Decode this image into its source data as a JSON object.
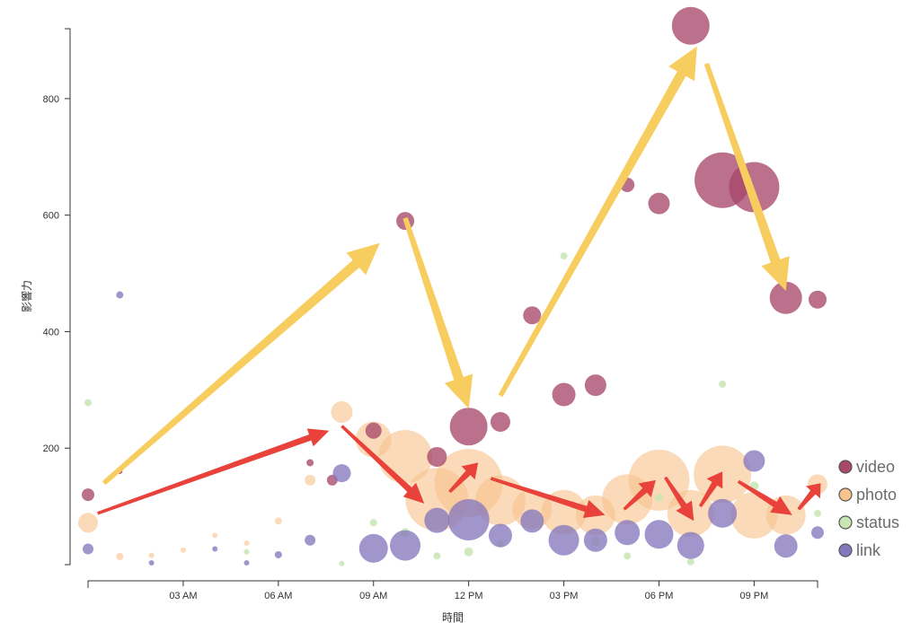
{
  "chart_data": {
    "type": "scatter",
    "xlabel": "時間",
    "ylabel": "影響力",
    "x_ticks": [
      "03 AM",
      "06 AM",
      "09 AM",
      "12 PM",
      "03 PM",
      "06 PM",
      "09 PM"
    ],
    "x_tick_hours": [
      3,
      6,
      9,
      12,
      15,
      18,
      21
    ],
    "x_range_hours": [
      0,
      23
    ],
    "y_ticks": [
      200,
      400,
      600,
      800
    ],
    "ylim": [
      0,
      920
    ],
    "grid": false,
    "legend_position": "bottom-right",
    "series": [
      {
        "name": "video",
        "color": "#a8486a",
        "points": [
          [
            0,
            120,
            7
          ],
          [
            1,
            160,
            3
          ],
          [
            7,
            175,
            4
          ],
          [
            7.7,
            145,
            6
          ],
          [
            9,
            230,
            9
          ],
          [
            10,
            590,
            10
          ],
          [
            11,
            185,
            11
          ],
          [
            12,
            237,
            21
          ],
          [
            13,
            245,
            11
          ],
          [
            14,
            428,
            10
          ],
          [
            15,
            292,
            13
          ],
          [
            16,
            308,
            12
          ],
          [
            17,
            652,
            8
          ],
          [
            18,
            620,
            12
          ],
          [
            19,
            925,
            21
          ],
          [
            20,
            660,
            31
          ],
          [
            21,
            648,
            28
          ],
          [
            22,
            458,
            18
          ],
          [
            23,
            455,
            10
          ]
        ]
      },
      {
        "name": "photo",
        "color": "#f7c48e",
        "points": [
          [
            0,
            72,
            11
          ],
          [
            1,
            14,
            4
          ],
          [
            2,
            16,
            3
          ],
          [
            3,
            25,
            3
          ],
          [
            4,
            50,
            3
          ],
          [
            5,
            37,
            3
          ],
          [
            6,
            75,
            4
          ],
          [
            7,
            145,
            6
          ],
          [
            8,
            262,
            12
          ],
          [
            9,
            215,
            20
          ],
          [
            10,
            185,
            30
          ],
          [
            11,
            112,
            35
          ],
          [
            12,
            140,
            38
          ],
          [
            13,
            110,
            28
          ],
          [
            14,
            95,
            22
          ],
          [
            15,
            90,
            25
          ],
          [
            16,
            85,
            22
          ],
          [
            17,
            112,
            28
          ],
          [
            18,
            145,
            34
          ],
          [
            19,
            88,
            26
          ],
          [
            20,
            155,
            32
          ],
          [
            21,
            85,
            26
          ],
          [
            22,
            85,
            22
          ],
          [
            23,
            138,
            11
          ]
        ]
      },
      {
        "name": "status",
        "color": "#c8e6b4",
        "points": [
          [
            0,
            278,
            4
          ],
          [
            5,
            22,
            3
          ],
          [
            8,
            2,
            3
          ],
          [
            9,
            72,
            4
          ],
          [
            10,
            55,
            5
          ],
          [
            11,
            15,
            4
          ],
          [
            12,
            22,
            5
          ],
          [
            13,
            35,
            4
          ],
          [
            15,
            530,
            4
          ],
          [
            16,
            40,
            5
          ],
          [
            17,
            15,
            4
          ],
          [
            18,
            115,
            4
          ],
          [
            19,
            5,
            4
          ],
          [
            20,
            310,
            4
          ],
          [
            21,
            135,
            5
          ],
          [
            23,
            88,
            4
          ]
        ]
      },
      {
        "name": "link",
        "color": "#8579bd",
        "points": [
          [
            0,
            27,
            6
          ],
          [
            1,
            463,
            4
          ],
          [
            2,
            3,
            3
          ],
          [
            4,
            27,
            3
          ],
          [
            5,
            3,
            3
          ],
          [
            6,
            17,
            4
          ],
          [
            7,
            42,
            6
          ],
          [
            8,
            157,
            10
          ],
          [
            9,
            28,
            16
          ],
          [
            10,
            33,
            17
          ],
          [
            11,
            76,
            14
          ],
          [
            12,
            77,
            23
          ],
          [
            13,
            50,
            13
          ],
          [
            14,
            75,
            13
          ],
          [
            15,
            42,
            17
          ],
          [
            16,
            42,
            13
          ],
          [
            17,
            55,
            14
          ],
          [
            18,
            52,
            16
          ],
          [
            19,
            33,
            15
          ],
          [
            20,
            88,
            16
          ],
          [
            21,
            178,
            12
          ],
          [
            22,
            32,
            13
          ],
          [
            23,
            55,
            7
          ]
        ]
      }
    ]
  },
  "legend": [
    {
      "label": "video",
      "color": "#a8486a"
    },
    {
      "label": "photo",
      "color": "#f7c48e"
    },
    {
      "label": "status",
      "color": "#c8e6b4"
    },
    {
      "label": "link",
      "color": "#8579bd"
    }
  ],
  "annotation_arrows": {
    "yellow": {
      "color": "#f7cd5f",
      "path_hours_values": [
        [
          0.5,
          140
        ],
        [
          9.2,
          552
        ],
        [
          10,
          595
        ],
        [
          12,
          268
        ],
        [
          13,
          290
        ],
        [
          19.2,
          890
        ],
        [
          19.5,
          860
        ],
        [
          22,
          470
        ]
      ]
    },
    "red": {
      "color": "#e8423a",
      "path_hours_values": [
        [
          0.3,
          88
        ],
        [
          7.6,
          230
        ],
        [
          8,
          238
        ],
        [
          10.6,
          105
        ],
        [
          11.4,
          125
        ],
        [
          12.3,
          175
        ],
        [
          12.7,
          148
        ],
        [
          16.3,
          85
        ],
        [
          16.9,
          95
        ],
        [
          17.9,
          145
        ],
        [
          18.2,
          150
        ],
        [
          19.1,
          75
        ],
        [
          19.3,
          100
        ],
        [
          20,
          160
        ],
        [
          20.5,
          143
        ],
        [
          22.2,
          85
        ],
        [
          22.4,
          95
        ],
        [
          23.1,
          140
        ]
      ]
    }
  }
}
